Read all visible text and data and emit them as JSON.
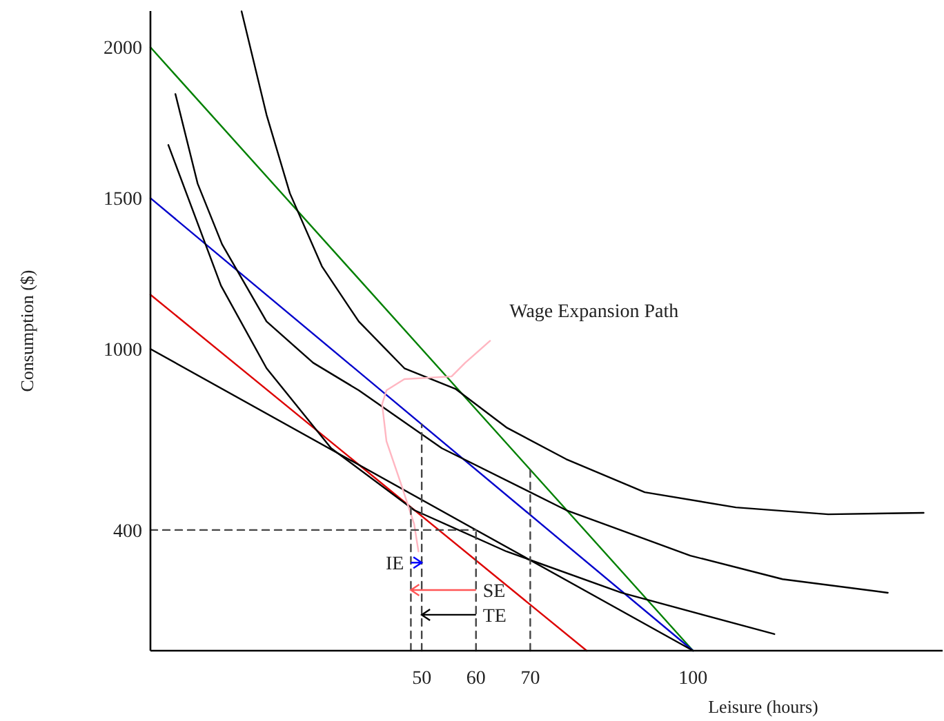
{
  "chart_data": {
    "type": "line",
    "xlabel": "Leisure (hours)",
    "ylabel": "Consumption ($)",
    "xlim": [
      0,
      146
    ],
    "ylim": [
      0,
      2120
    ],
    "xticks": [
      50,
      60,
      70,
      100
    ],
    "yticks": [
      400,
      1000,
      1500,
      2000
    ],
    "grid": false,
    "marker": "none",
    "line_style": "solid",
    "series": [
      {
        "color": "#008000",
        "x": [
          0,
          100
        ],
        "values": [
          2000,
          0
        ]
      },
      {
        "color": "#0000cc",
        "x": [
          0,
          100
        ],
        "values": [
          1500,
          0
        ]
      },
      {
        "color": "#dd0000",
        "x": [
          0,
          80.4
        ],
        "values": [
          1180,
          0
        ]
      },
      {
        "color": "#000000",
        "x": [
          0,
          100
        ],
        "values": [
          1000,
          0
        ]
      },
      {
        "color": "#000000",
        "x": [
          16.8,
          21.4,
          25.7,
          31.6,
          38.4,
          46.8,
          56.2,
          65.6,
          76.6,
          91.1,
          107.9,
          124.9,
          142.5
        ],
        "values": [
          2119,
          1776,
          1516,
          1274,
          1091,
          936,
          868,
          740,
          635,
          525,
          475,
          452,
          457
        ]
      },
      {
        "color": "#000000",
        "x": [
          4.6,
          8.7,
          13.2,
          21.4,
          30.0,
          38.4,
          53.7,
          76.6,
          99.5,
          116.5,
          135.9
        ],
        "values": [
          1845,
          1548,
          1347,
          1091,
          954,
          863,
          671,
          466,
          315,
          237,
          192
        ]
      },
      {
        "color": "#000000",
        "x": [
          3.3,
          13.0,
          21.4,
          33.3,
          48.6,
          65.6,
          86.8,
          115.0
        ],
        "values": [
          1676,
          1210,
          936,
          671,
          466,
          329,
          192,
          55
        ]
      },
      {
        "color": "#ffb6c1",
        "x": [
          62.6,
          58.0,
          55.5,
          46.8,
          43.5,
          42.7,
          43.5,
          46.1,
          48.6,
          49.4
        ],
        "values": [
          1027,
          954,
          909,
          900,
          863,
          817,
          694,
          557,
          420,
          329
        ]
      },
      {
        "color": "#444444",
        "line_style": "dashed",
        "x": [
          48,
          48
        ],
        "values": [
          0,
          476
        ]
      },
      {
        "color": "#444444",
        "line_style": "dashed",
        "x": [
          50,
          50
        ],
        "values": [
          0,
          750
        ]
      },
      {
        "color": "#444444",
        "line_style": "dashed",
        "x": [
          60,
          60
        ],
        "values": [
          0,
          400
        ]
      },
      {
        "color": "#444444",
        "line_style": "dashed",
        "x": [
          70,
          70
        ],
        "values": [
          0,
          600
        ]
      },
      {
        "color": "#444444",
        "line_style": "dashed",
        "x": [
          0,
          60
        ],
        "values": [
          400,
          400
        ]
      }
    ],
    "annotations": [
      {
        "text": "Wage Expansion Path",
        "x": 62.6,
        "y": 1027
      },
      {
        "text": "IE",
        "x": 48,
        "y": 292
      },
      {
        "text": "SE",
        "x": 60,
        "y": 201
      },
      {
        "text": "TE",
        "x": 60,
        "y": 119
      }
    ]
  }
}
